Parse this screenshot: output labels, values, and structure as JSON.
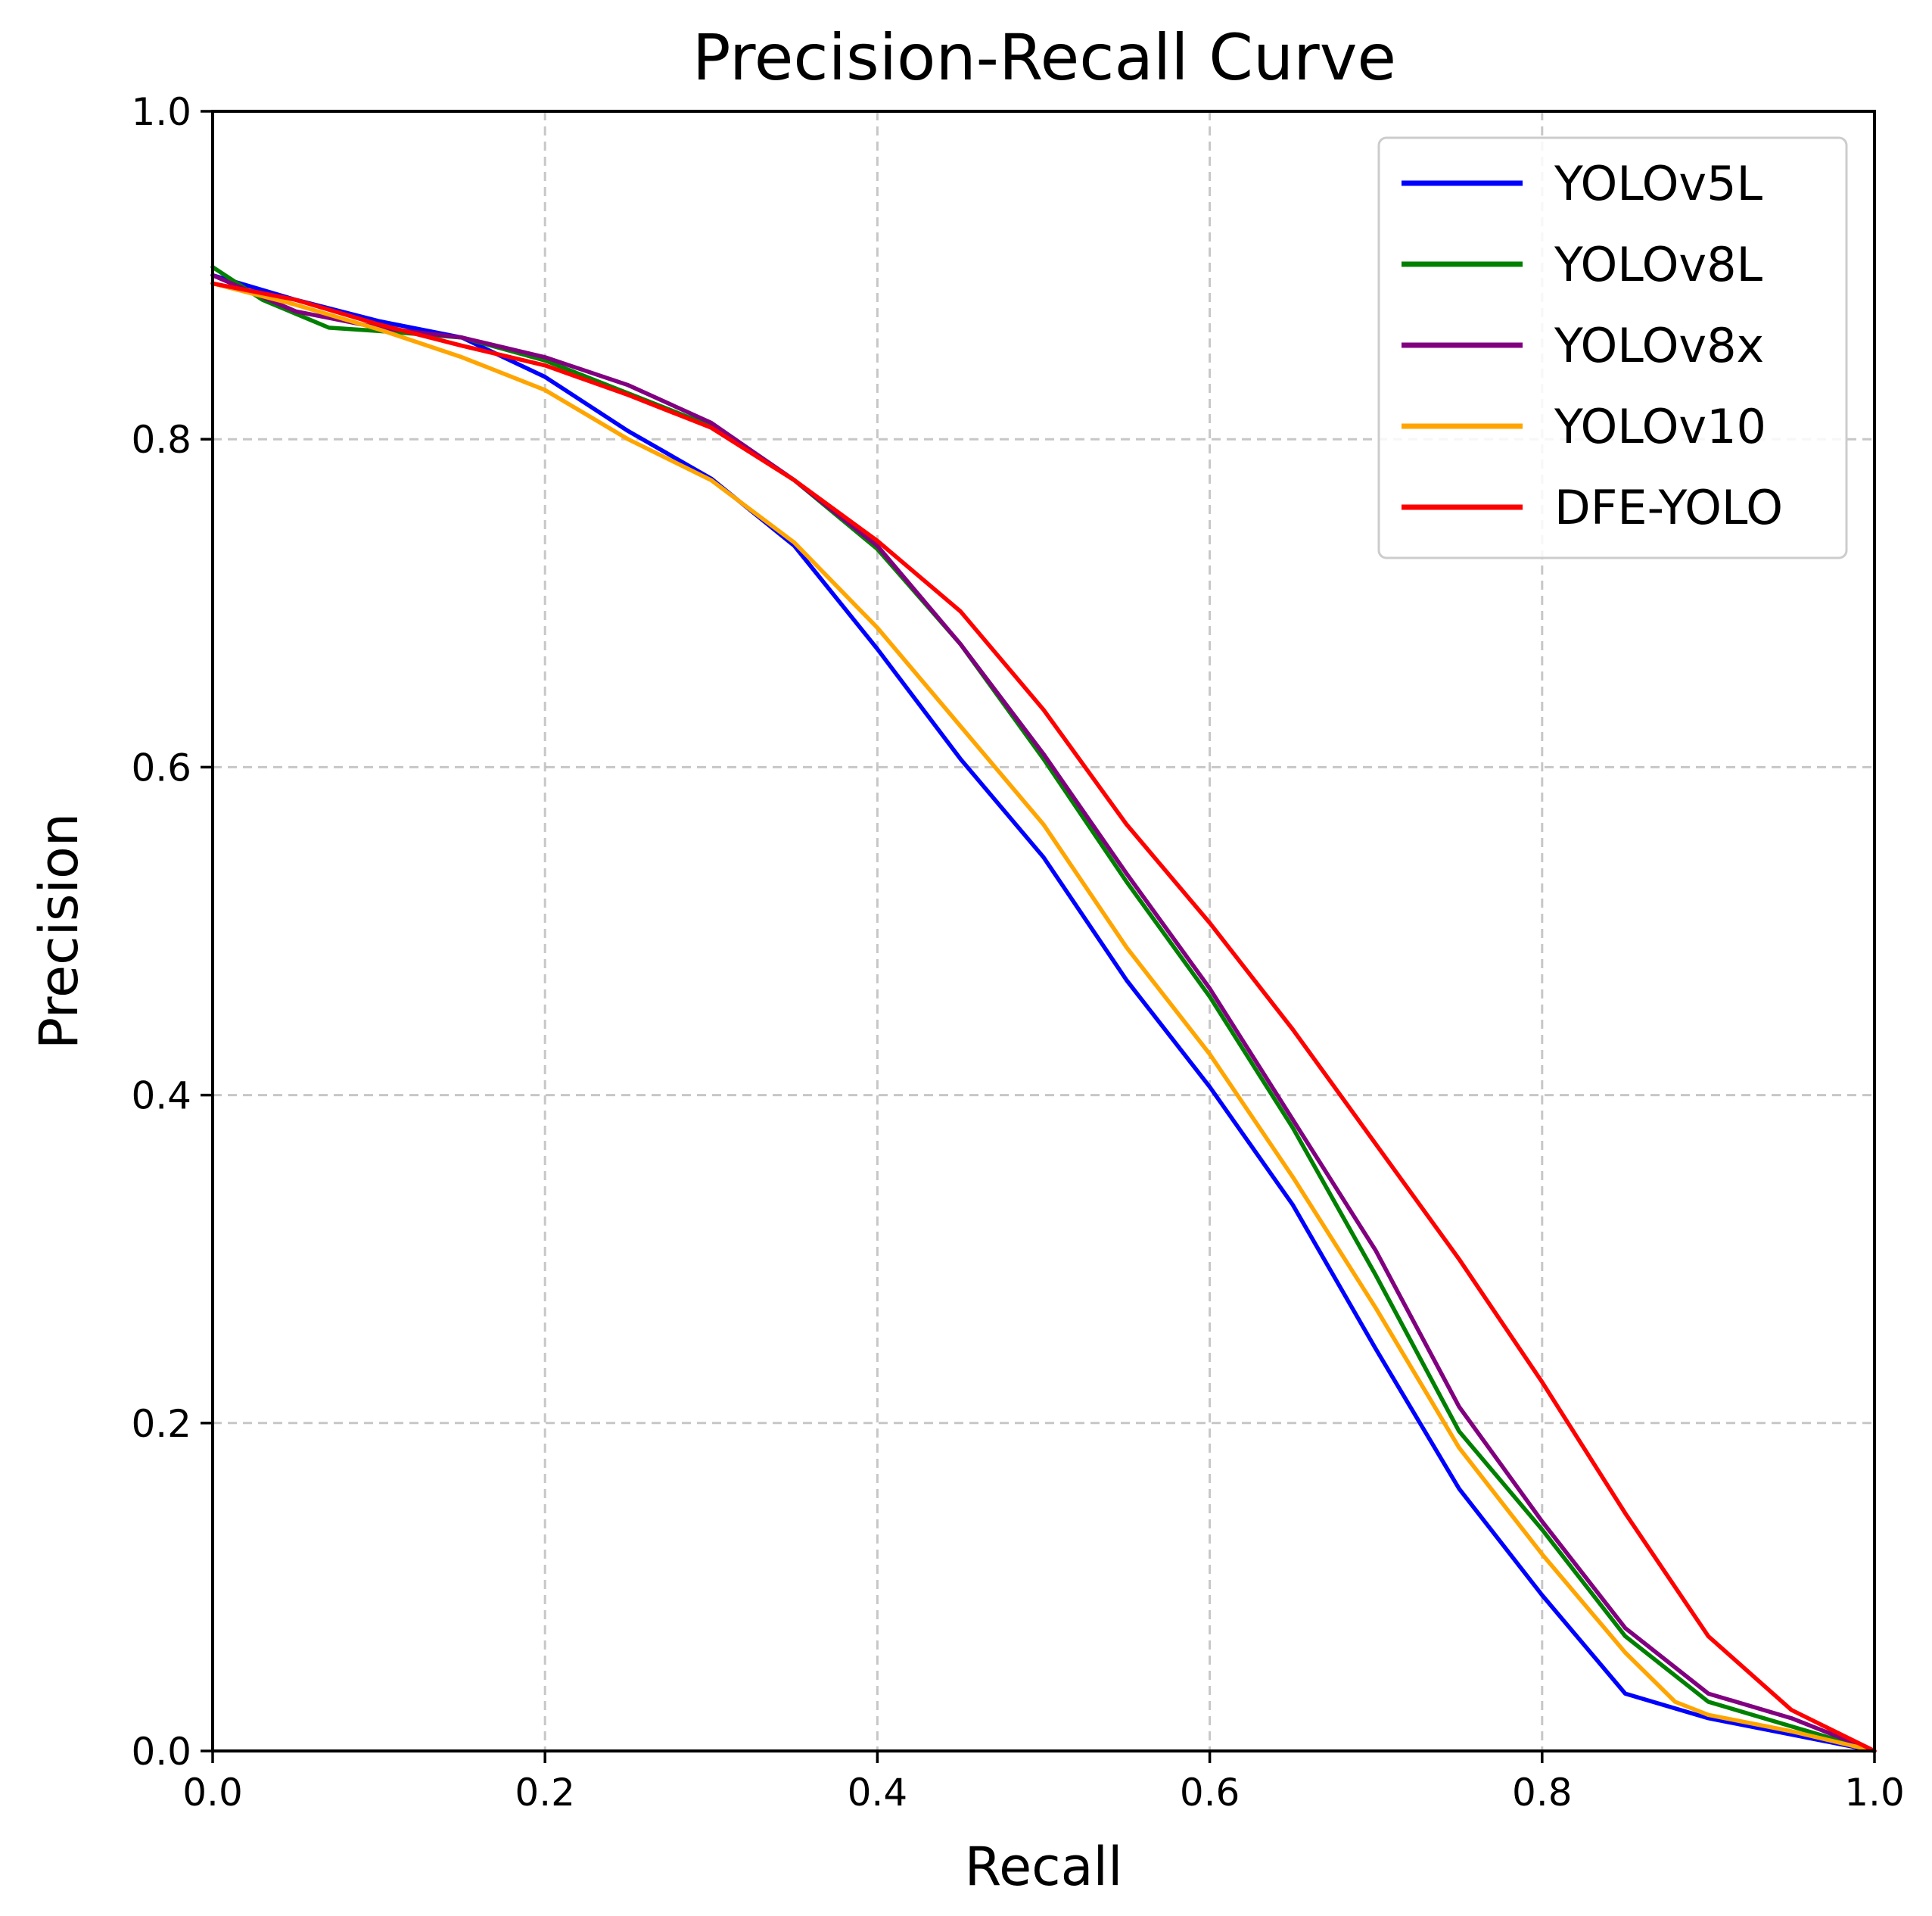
{
  "chart_data": {
    "type": "line",
    "title": "Precision-Recall Curve",
    "xlabel": "Recall",
    "ylabel": "Precision",
    "xlim": [
      0,
      1
    ],
    "ylim": [
      0,
      1
    ],
    "xticks": [
      "0.0",
      "0.2",
      "0.4",
      "0.6",
      "0.8",
      "1.0"
    ],
    "yticks": [
      "0.0",
      "0.2",
      "0.4",
      "0.6",
      "0.8",
      "1.0"
    ],
    "xtick_values": [
      0,
      0.2,
      0.4,
      0.6,
      0.8,
      1.0
    ],
    "ytick_values": [
      0,
      0.2,
      0.4,
      0.6,
      0.8,
      1.0
    ],
    "grid": true,
    "legend_position": "top-right",
    "series": [
      {
        "name": "YOLOv5L",
        "color": "#0000ff",
        "points": [
          [
            0,
            0.9
          ],
          [
            0.05,
            0.885
          ],
          [
            0.1,
            0.872
          ],
          [
            0.15,
            0.862
          ],
          [
            0.2,
            0.838
          ],
          [
            0.25,
            0.805
          ],
          [
            0.3,
            0.776
          ],
          [
            0.35,
            0.735
          ],
          [
            0.4,
            0.672
          ],
          [
            0.45,
            0.605
          ],
          [
            0.5,
            0.545
          ],
          [
            0.55,
            0.47
          ],
          [
            0.6,
            0.405
          ],
          [
            0.65,
            0.333
          ],
          [
            0.7,
            0.245
          ],
          [
            0.75,
            0.16
          ],
          [
            0.8,
            0.095
          ],
          [
            0.85,
            0.035
          ],
          [
            0.9,
            0.02
          ],
          [
            0.95,
            0.01
          ],
          [
            1.0,
            0.0
          ]
        ]
      },
      {
        "name": "YOLOv8L",
        "color": "#008000",
        "points": [
          [
            0,
            0.905
          ],
          [
            0.03,
            0.885
          ],
          [
            0.07,
            0.868
          ],
          [
            0.1,
            0.866
          ],
          [
            0.15,
            0.862
          ],
          [
            0.2,
            0.848
          ],
          [
            0.25,
            0.828
          ],
          [
            0.3,
            0.808
          ],
          [
            0.35,
            0.775
          ],
          [
            0.4,
            0.733
          ],
          [
            0.45,
            0.675
          ],
          [
            0.5,
            0.605
          ],
          [
            0.55,
            0.53
          ],
          [
            0.6,
            0.46
          ],
          [
            0.65,
            0.38
          ],
          [
            0.7,
            0.29
          ],
          [
            0.75,
            0.195
          ],
          [
            0.8,
            0.135
          ],
          [
            0.85,
            0.07
          ],
          [
            0.9,
            0.03
          ],
          [
            0.95,
            0.015
          ],
          [
            1.0,
            0.0
          ]
        ]
      },
      {
        "name": "YOLOv8x",
        "color": "#800080",
        "points": [
          [
            0,
            0.9
          ],
          [
            0.05,
            0.878
          ],
          [
            0.1,
            0.868
          ],
          [
            0.15,
            0.862
          ],
          [
            0.2,
            0.85
          ],
          [
            0.25,
            0.833
          ],
          [
            0.3,
            0.81
          ],
          [
            0.35,
            0.775
          ],
          [
            0.4,
            0.735
          ],
          [
            0.45,
            0.675
          ],
          [
            0.5,
            0.608
          ],
          [
            0.55,
            0.535
          ],
          [
            0.6,
            0.465
          ],
          [
            0.65,
            0.385
          ],
          [
            0.7,
            0.305
          ],
          [
            0.75,
            0.21
          ],
          [
            0.8,
            0.14
          ],
          [
            0.85,
            0.075
          ],
          [
            0.9,
            0.035
          ],
          [
            0.95,
            0.02
          ],
          [
            1.0,
            0.0
          ]
        ]
      },
      {
        "name": "YOLOv10",
        "color": "#ffa500",
        "points": [
          [
            0,
            0.895
          ],
          [
            0.05,
            0.882
          ],
          [
            0.1,
            0.867
          ],
          [
            0.15,
            0.85
          ],
          [
            0.2,
            0.83
          ],
          [
            0.25,
            0.8
          ],
          [
            0.3,
            0.775
          ],
          [
            0.35,
            0.737
          ],
          [
            0.4,
            0.685
          ],
          [
            0.45,
            0.625
          ],
          [
            0.5,
            0.565
          ],
          [
            0.55,
            0.49
          ],
          [
            0.6,
            0.425
          ],
          [
            0.65,
            0.35
          ],
          [
            0.7,
            0.27
          ],
          [
            0.75,
            0.185
          ],
          [
            0.8,
            0.12
          ],
          [
            0.85,
            0.06
          ],
          [
            0.88,
            0.03
          ],
          [
            0.9,
            0.022
          ],
          [
            0.95,
            0.012
          ],
          [
            1.0,
            0.0
          ]
        ]
      },
      {
        "name": "DFE-YOLO",
        "color": "#ff0000",
        "points": [
          [
            0,
            0.895
          ],
          [
            0.05,
            0.885
          ],
          [
            0.1,
            0.87
          ],
          [
            0.15,
            0.857
          ],
          [
            0.2,
            0.845
          ],
          [
            0.25,
            0.827
          ],
          [
            0.3,
            0.807
          ],
          [
            0.35,
            0.775
          ],
          [
            0.4,
            0.738
          ],
          [
            0.45,
            0.695
          ],
          [
            0.5,
            0.635
          ],
          [
            0.55,
            0.565
          ],
          [
            0.6,
            0.505
          ],
          [
            0.65,
            0.44
          ],
          [
            0.7,
            0.37
          ],
          [
            0.75,
            0.3
          ],
          [
            0.8,
            0.225
          ],
          [
            0.85,
            0.145
          ],
          [
            0.9,
            0.07
          ],
          [
            0.95,
            0.025
          ],
          [
            1.0,
            0.0
          ]
        ]
      }
    ]
  }
}
